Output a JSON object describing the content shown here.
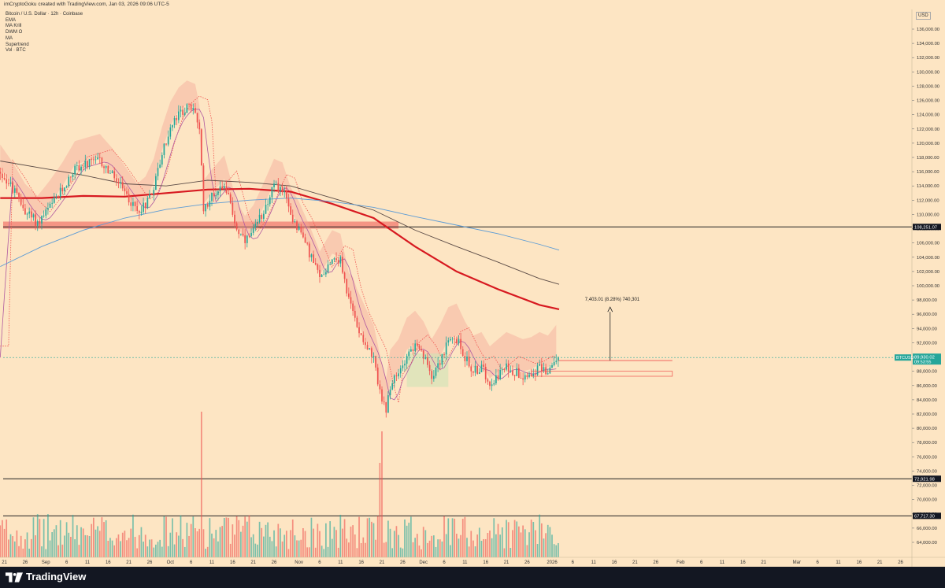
{
  "header": {
    "credit": "imCryptoGoku created with TradingView.com, Jan 03, 2026 09:06 UTC-5",
    "symbol_title": "Bitcoin / U.S. Dollar · 12h · Coinbase",
    "indicators": [
      "EMA",
      "MA Krill",
      "DWM O",
      "MA",
      "Supertrend",
      "Vol · BTC"
    ]
  },
  "footer": {
    "brand": "TradingView"
  },
  "colors": {
    "background": "#fde5c3",
    "up": "#26a69a",
    "down": "#ef5350",
    "ma200": "#d71920",
    "ma_dark": "#5a4a45",
    "ma_blue": "#5b9bd5",
    "supertrend_band": "#f5a89a",
    "supertrend_band_green": "#cfe3b5",
    "price_tag": "#26a69a",
    "level_tag": "#131722"
  },
  "chart_data": {
    "type": "candlestick",
    "title": "Bitcoin / U.S. Dollar · 12h · Coinbase",
    "currency": "USD",
    "ylim": [
      62000,
      138000
    ],
    "y_ticks": [
      64000,
      66000,
      68000,
      70000,
      72000,
      74000,
      76000,
      78000,
      80000,
      82000,
      84000,
      86000,
      88000,
      90000,
      92000,
      94000,
      96000,
      98000,
      100000,
      102000,
      104000,
      106000,
      108000,
      110000,
      112000,
      114000,
      116000,
      118000,
      120000,
      122000,
      124000,
      126000,
      128000,
      130000,
      132000,
      134000,
      136000
    ],
    "y_tick_labels": [
      "64,000.00",
      "66,000.00",
      "68,000.00",
      "70,000.00",
      "72,000.00",
      "74,000.00",
      "76,000.00",
      "78,000.00",
      "80,000.00",
      "82,000.00",
      "84,000.00",
      "86,000.00",
      "88,000.00",
      "90,000.00",
      "92,000.00",
      "94,000.00",
      "96,000.00",
      "98,000.00",
      "100,000.00",
      "102,000.00",
      "104,000.00",
      "106,000.00",
      "108,000.00",
      "110,000.00",
      "112,000.00",
      "114,000.00",
      "116,000.00",
      "118,000.00",
      "120,000.00",
      "122,000.00",
      "124,000.00",
      "126,000.00",
      "128,000.00",
      "130,000.00",
      "132,000.00",
      "134,000.00",
      "136,000.00"
    ],
    "x_tick_labels": [
      "21",
      "26",
      "Sep",
      "6",
      "11",
      "16",
      "21",
      "26",
      "Oct",
      "6",
      "11",
      "16",
      "21",
      "26",
      "Nov",
      "6",
      "11",
      "16",
      "21",
      "26",
      "Dec",
      "6",
      "11",
      "16",
      "21",
      "26",
      "2026",
      "6",
      "11",
      "16",
      "21",
      "26",
      "Feb",
      "6",
      "11",
      "16",
      "21",
      "Mar",
      "6",
      "11",
      "16",
      "21",
      "26"
    ],
    "x_tick_days": [
      -9,
      -4,
      1,
      6,
      11,
      16,
      21,
      26,
      31,
      36,
      41,
      46,
      51,
      56,
      62,
      67,
      72,
      77,
      82,
      87,
      92,
      97,
      102,
      107,
      112,
      117,
      123,
      128,
      133,
      138,
      143,
      148,
      154,
      159,
      164,
      169,
      174,
      182,
      187,
      192,
      197,
      202,
      207
    ],
    "x_range_days": [
      -10,
      212
    ],
    "last_day": 124.7,
    "price_keyframes": [
      [
        -10,
        116000
      ],
      [
        -7,
        113500
      ],
      [
        -4,
        110500
      ],
      [
        -1,
        108800
      ],
      [
        2,
        111000
      ],
      [
        5,
        113500
      ],
      [
        8,
        116500
      ],
      [
        11,
        117000
      ],
      [
        14,
        117500
      ],
      [
        17,
        115500
      ],
      [
        20,
        113000
      ],
      [
        23,
        110500
      ],
      [
        25,
        111500
      ],
      [
        27,
        114000
      ],
      [
        29,
        118500
      ],
      [
        31,
        122000
      ],
      [
        33,
        124000
      ],
      [
        35,
        125000
      ],
      [
        37,
        124500
      ],
      [
        38,
        121500
      ],
      [
        39,
        111000
      ],
      [
        41,
        112500
      ],
      [
        44,
        114500
      ],
      [
        47,
        108000
      ],
      [
        49,
        106000
      ],
      [
        51,
        107500
      ],
      [
        53,
        110000
      ],
      [
        56,
        114000
      ],
      [
        58,
        113500
      ],
      [
        60,
        110000
      ],
      [
        62,
        108000
      ],
      [
        65,
        104000
      ],
      [
        67,
        101000
      ],
      [
        70,
        104000
      ],
      [
        72,
        103500
      ],
      [
        74,
        98000
      ],
      [
        76,
        94500
      ],
      [
        78,
        92000
      ],
      [
        80,
        89500
      ],
      [
        82,
        84000
      ],
      [
        83,
        82000
      ],
      [
        84,
        86000
      ],
      [
        86,
        87500
      ],
      [
        88,
        90500
      ],
      [
        90,
        91500
      ],
      [
        92,
        90000
      ],
      [
        94,
        87500
      ],
      [
        96,
        89500
      ],
      [
        98,
        92000
      ],
      [
        100,
        92500
      ],
      [
        102,
        90000
      ],
      [
        104,
        88000
      ],
      [
        106,
        88500
      ],
      [
        108,
        86500
      ],
      [
        110,
        87500
      ],
      [
        112,
        88500
      ],
      [
        114,
        88000
      ],
      [
        116,
        87500
      ],
      [
        118,
        87800
      ],
      [
        120,
        88500
      ],
      [
        122,
        88000
      ],
      [
        124,
        89500
      ],
      [
        124.7,
        89930
      ]
    ],
    "series": [
      {
        "name": "MA",
        "style": "thick-red",
        "points": [
          [
            -10,
            112300
          ],
          [
            0,
            112300
          ],
          [
            10,
            112600
          ],
          [
            20,
            112500
          ],
          [
            30,
            113000
          ],
          [
            40,
            113500
          ],
          [
            50,
            113600
          ],
          [
            60,
            113200
          ],
          [
            70,
            111500
          ],
          [
            80,
            109500
          ],
          [
            90,
            105500
          ],
          [
            100,
            102000
          ],
          [
            110,
            99500
          ],
          [
            120,
            97300
          ],
          [
            124.7,
            96700
          ]
        ]
      },
      {
        "name": "MA",
        "style": "dark",
        "points": [
          [
            -10,
            117500
          ],
          [
            0,
            116500
          ],
          [
            10,
            115500
          ],
          [
            20,
            114300
          ],
          [
            30,
            114000
          ],
          [
            40,
            114800
          ],
          [
            50,
            114500
          ],
          [
            60,
            114000
          ],
          [
            70,
            112300
          ],
          [
            80,
            110600
          ],
          [
            90,
            107800
          ],
          [
            100,
            105500
          ],
          [
            110,
            103300
          ],
          [
            120,
            101000
          ],
          [
            124.7,
            100200
          ]
        ]
      },
      {
        "name": "MA",
        "style": "blue",
        "points": [
          [
            -10,
            102700
          ],
          [
            0,
            105500
          ],
          [
            10,
            107800
          ],
          [
            20,
            109500
          ],
          [
            30,
            110700
          ],
          [
            40,
            111500
          ],
          [
            50,
            112000
          ],
          [
            60,
            112300
          ],
          [
            70,
            111800
          ],
          [
            80,
            111000
          ],
          [
            90,
            109700
          ],
          [
            100,
            108500
          ],
          [
            110,
            107300
          ],
          [
            120,
            105800
          ],
          [
            124.7,
            105000
          ]
        ]
      }
    ],
    "levels": [
      {
        "price": 108251.07,
        "label": "108,251.07"
      },
      {
        "price": 72921.98,
        "label": "72,921.98"
      },
      {
        "price": 67717.3,
        "label": "67,717.30"
      }
    ],
    "current_price": {
      "symbol": "BTCUSD",
      "price": 89930.02,
      "label": "89,930.02",
      "countdown": "09:53:55"
    },
    "measure_annotation": {
      "text": "7,403.01 (8.28%) 740,301",
      "from": 89500,
      "to": 97000,
      "day": 137
    },
    "resistance_zone": {
      "from": 108000,
      "to": 109000
    }
  }
}
